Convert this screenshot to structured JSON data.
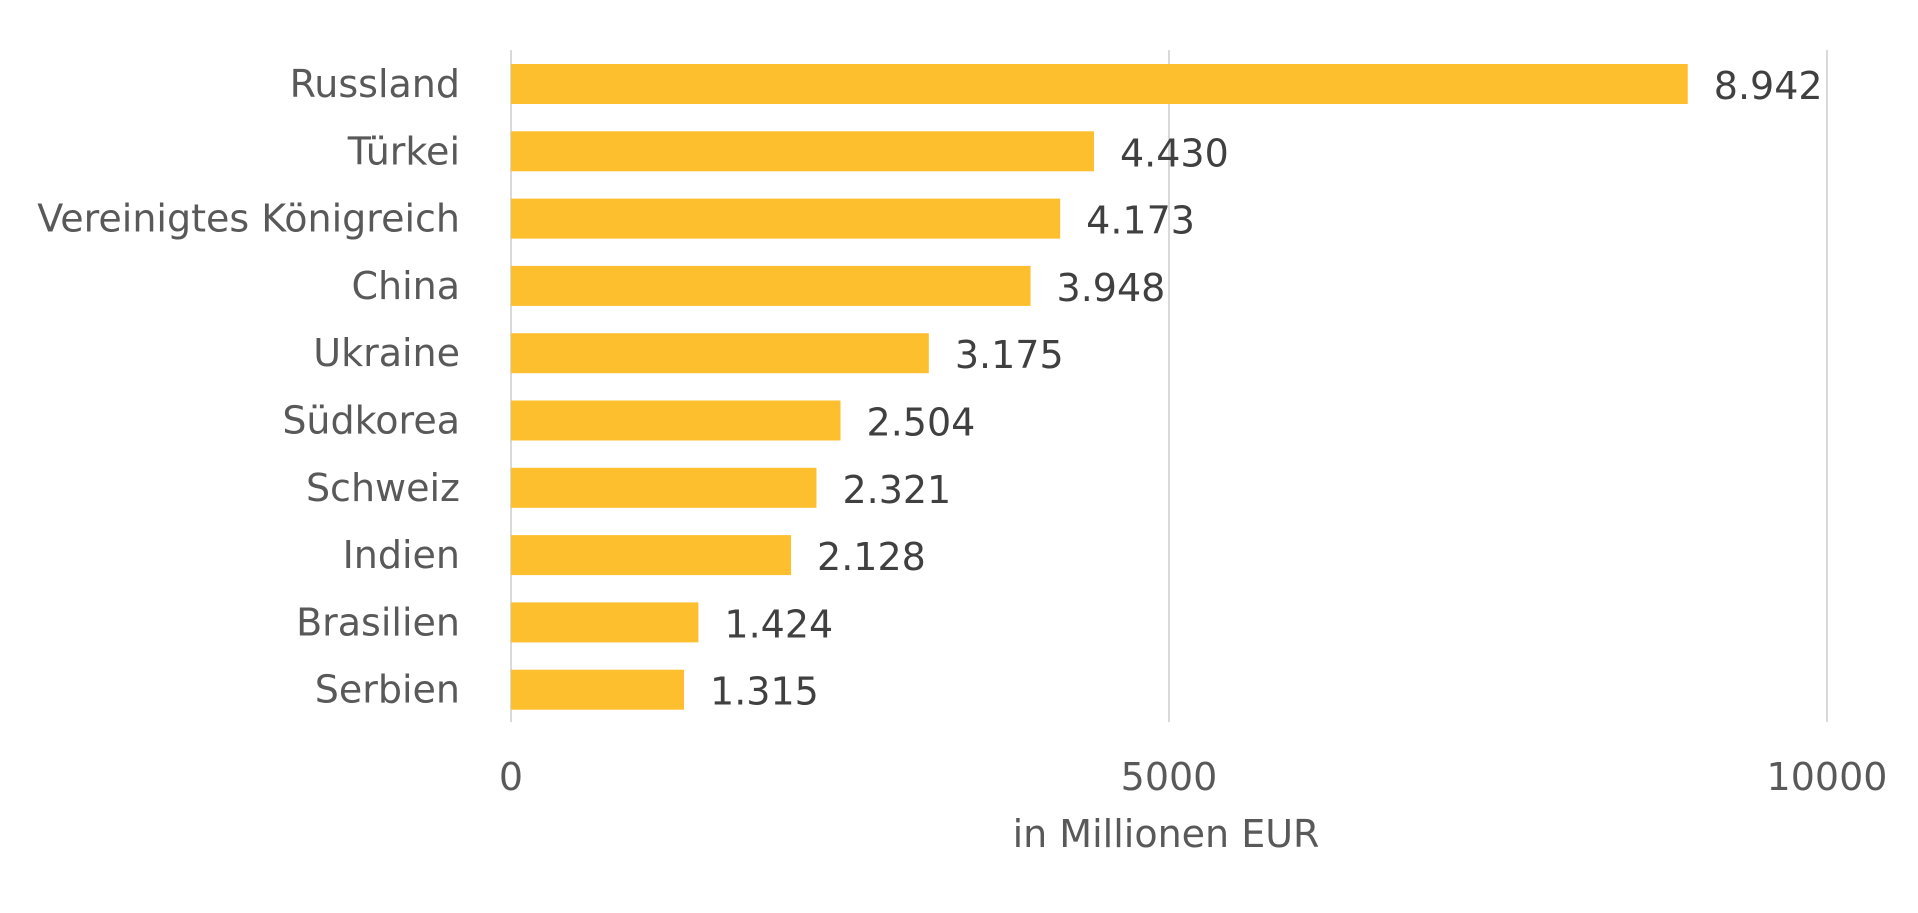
{
  "chart_data": {
    "type": "bar",
    "orientation": "horizontal",
    "categories": [
      "Russland",
      "Türkei",
      "Vereinigtes Königreich",
      "China",
      "Ukraine",
      "Südkorea",
      "Schweiz",
      "Indien",
      "Brasilien",
      "Serbien"
    ],
    "values": [
      8942,
      4430,
      4173,
      3948,
      3175,
      2504,
      2321,
      2128,
      1424,
      1315
    ],
    "value_labels": [
      "8.942",
      "4.430",
      "4.173",
      "3.948",
      "3.175",
      "2.504",
      "2.321",
      "2.128",
      "1.424",
      "1.315"
    ],
    "title": "",
    "xlabel": "in Millionen EUR",
    "ylabel": "",
    "xlim": [
      0,
      10000
    ],
    "x_ticks": [
      0,
      5000,
      10000
    ],
    "x_tick_labels": [
      "0",
      "5000",
      "10000"
    ],
    "grid": "vertical",
    "legend": "none"
  },
  "colors": {
    "bar": "#FDBF2D",
    "gridline": "#D9D9D9",
    "category_text": "#595959",
    "value_text": "#404040",
    "axis_text": "#595959"
  }
}
